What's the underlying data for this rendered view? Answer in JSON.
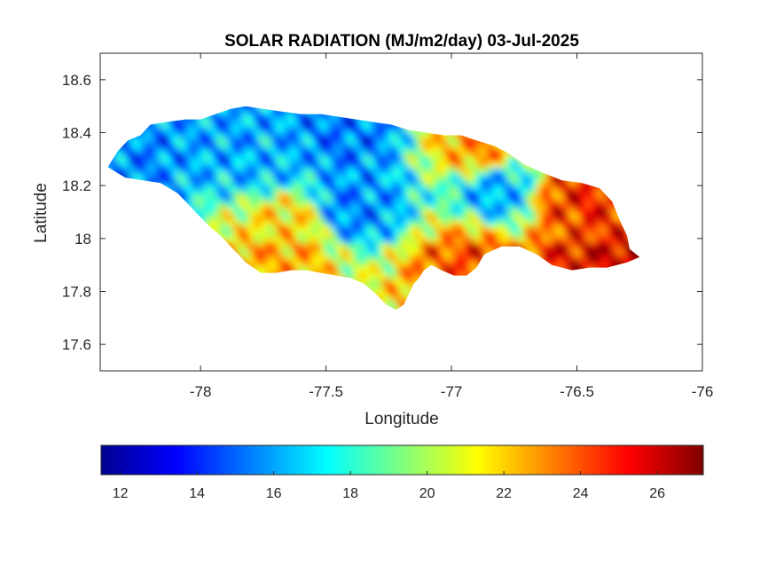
{
  "chart_data": {
    "type": "heatmap",
    "title": "SOLAR RADIATION (MJ/m2/day) 03-Jul-2025",
    "xlabel": "Longitude",
    "ylabel": "Latitude",
    "xlim": [
      -78.4,
      -76.0
    ],
    "ylim": [
      17.5,
      18.7
    ],
    "x_ticks": [
      -78,
      -77.5,
      -77,
      -76.5,
      -76
    ],
    "x_tick_labels": [
      "-78",
      "-77.5",
      "-77",
      "-76.5",
      "-76"
    ],
    "y_ticks": [
      17.6,
      17.8,
      18.0,
      18.2,
      18.4,
      18.6
    ],
    "y_tick_labels": [
      "17.6",
      "17.8",
      "18",
      "18.2",
      "18.4",
      "18.6"
    ],
    "grid": false,
    "colormap": "jet",
    "color_range": [
      11.5,
      27.2
    ],
    "colorbar": {
      "placement": "bottom",
      "ticks": [
        12,
        14,
        16,
        18,
        20,
        22,
        24,
        26
      ],
      "tick_labels": [
        "12",
        "14",
        "16",
        "18",
        "20",
        "22",
        "24",
        "26"
      ]
    },
    "region_outline": [
      [
        -78.37,
        18.27
      ],
      [
        -78.33,
        18.33
      ],
      [
        -78.29,
        18.37
      ],
      [
        -78.24,
        18.39
      ],
      [
        -78.2,
        18.43
      ],
      [
        -78.14,
        18.44
      ],
      [
        -78.06,
        18.45
      ],
      [
        -78.0,
        18.45
      ],
      [
        -77.94,
        18.47
      ],
      [
        -77.88,
        18.49
      ],
      [
        -77.82,
        18.5
      ],
      [
        -77.75,
        18.49
      ],
      [
        -77.68,
        18.48
      ],
      [
        -77.6,
        18.47
      ],
      [
        -77.52,
        18.47
      ],
      [
        -77.45,
        18.46
      ],
      [
        -77.38,
        18.45
      ],
      [
        -77.31,
        18.44
      ],
      [
        -77.24,
        18.43
      ],
      [
        -77.17,
        18.41
      ],
      [
        -77.1,
        18.4
      ],
      [
        -77.03,
        18.39
      ],
      [
        -76.96,
        18.39
      ],
      [
        -76.9,
        18.37
      ],
      [
        -76.83,
        18.35
      ],
      [
        -76.77,
        18.32
      ],
      [
        -76.71,
        18.28
      ],
      [
        -76.64,
        18.25
      ],
      [
        -76.56,
        18.22
      ],
      [
        -76.48,
        18.21
      ],
      [
        -76.41,
        18.19
      ],
      [
        -76.36,
        18.14
      ],
      [
        -76.33,
        18.07
      ],
      [
        -76.3,
        18.01
      ],
      [
        -76.29,
        17.96
      ],
      [
        -76.25,
        17.93
      ],
      [
        -76.3,
        17.91
      ],
      [
        -76.38,
        17.89
      ],
      [
        -76.45,
        17.89
      ],
      [
        -76.52,
        17.88
      ],
      [
        -76.6,
        17.9
      ],
      [
        -76.66,
        17.94
      ],
      [
        -76.73,
        17.97
      ],
      [
        -76.8,
        17.97
      ],
      [
        -76.87,
        17.94
      ],
      [
        -76.9,
        17.89
      ],
      [
        -76.94,
        17.86
      ],
      [
        -76.99,
        17.86
      ],
      [
        -77.04,
        17.88
      ],
      [
        -77.08,
        17.9
      ],
      [
        -77.11,
        17.88
      ],
      [
        -77.13,
        17.85
      ],
      [
        -77.15,
        17.83
      ],
      [
        -77.17,
        17.79
      ],
      [
        -77.19,
        17.75
      ],
      [
        -77.22,
        17.73
      ],
      [
        -77.26,
        17.75
      ],
      [
        -77.3,
        17.79
      ],
      [
        -77.35,
        17.83
      ],
      [
        -77.4,
        17.85
      ],
      [
        -77.46,
        17.86
      ],
      [
        -77.52,
        17.87
      ],
      [
        -77.58,
        17.88
      ],
      [
        -77.64,
        17.88
      ],
      [
        -77.7,
        17.87
      ],
      [
        -77.76,
        17.87
      ],
      [
        -77.82,
        17.91
      ],
      [
        -77.87,
        17.96
      ],
      [
        -77.92,
        18.01
      ],
      [
        -77.97,
        18.05
      ],
      [
        -78.03,
        18.11
      ],
      [
        -78.09,
        18.17
      ],
      [
        -78.16,
        18.21
      ],
      [
        -78.23,
        18.22
      ],
      [
        -78.3,
        18.23
      ],
      [
        -78.37,
        18.27
      ]
    ],
    "field_hotspots": [
      {
        "lon": -78.3,
        "lat": 18.31,
        "value": 13.5
      },
      {
        "lon": -77.85,
        "lat": 18.36,
        "value": 14.5
      },
      {
        "lon": -77.75,
        "lat": 18.3,
        "value": 15.0
      },
      {
        "lon": -77.45,
        "lat": 18.39,
        "value": 13.0
      },
      {
        "lon": -77.42,
        "lat": 18.11,
        "value": 13.5
      },
      {
        "lon": -76.8,
        "lat": 18.17,
        "value": 12.5
      },
      {
        "lon": -77.65,
        "lat": 18.05,
        "value": 25.5
      },
      {
        "lon": -77.75,
        "lat": 17.92,
        "value": 25.0
      },
      {
        "lon": -76.95,
        "lat": 17.92,
        "value": 26.5
      },
      {
        "lon": -76.55,
        "lat": 18.14,
        "value": 27.0
      },
      {
        "lon": -76.9,
        "lat": 18.35,
        "value": 26.0
      },
      {
        "lon": -76.45,
        "lat": 17.97,
        "value": 26.0
      }
    ]
  }
}
